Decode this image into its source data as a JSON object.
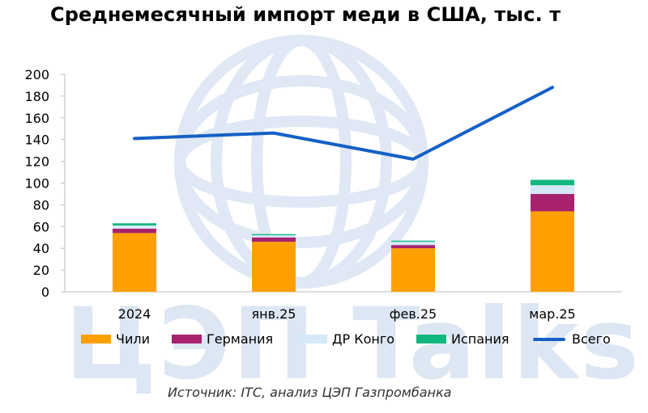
{
  "title": "Среднемесячный импорт меди в США, тыс. т",
  "watermark": "ЦЭП Talks",
  "source": "Источник: ITC, анализ ЦЭП Газпромбанка",
  "colors": {
    "Чили": "#ffa000",
    "Германия": "#a8226e",
    "ДР Конго": "#d4e9f8",
    "Испания": "#12b77d",
    "Всего": "#1560c6"
  },
  "chart_data": {
    "type": "bar",
    "stacked": true,
    "categories": [
      "2024",
      "янв.25",
      "фев.25",
      "мар.25"
    ],
    "series": [
      {
        "name": "Чили",
        "type": "bar",
        "values": [
          54,
          46,
          40,
          74
        ]
      },
      {
        "name": "Германия",
        "type": "bar",
        "values": [
          4,
          4,
          3,
          16
        ]
      },
      {
        "name": "ДР Конго",
        "type": "bar",
        "values": [
          3,
          2,
          3,
          8
        ]
      },
      {
        "name": "Испания",
        "type": "bar",
        "values": [
          2,
          1,
          1,
          5
        ]
      },
      {
        "name": "Всего",
        "type": "line",
        "values": [
          141,
          146,
          122,
          188
        ]
      }
    ],
    "yticks": [
      0,
      20,
      40,
      60,
      80,
      100,
      120,
      140,
      160,
      180,
      200
    ],
    "ylim": [
      0,
      200
    ],
    "grid": false,
    "legend_position": "bottom"
  }
}
